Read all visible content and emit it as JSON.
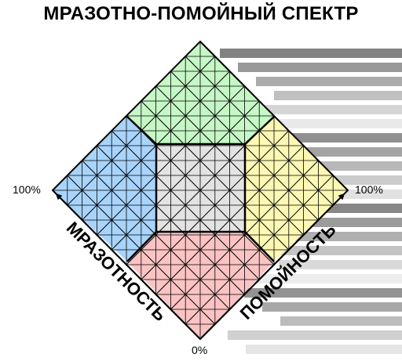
{
  "title": "МРАЗОТНО-ПОМОЙНЫЙ СПЕКТР",
  "left_axis": {
    "label": "МРАЗОТНОСТЬ",
    "max_label": "100%"
  },
  "right_axis": {
    "label": "ПОМОЙНОСТЬ",
    "max_label": "100%"
  },
  "origin_label": "0%",
  "colors": {
    "top": "#c6f7c6",
    "left": "#a8d4fb",
    "right": "#fdf8b4",
    "bottom": "#fbc3c3",
    "center": "#e3e3e3",
    "grid": "#000000"
  }
}
